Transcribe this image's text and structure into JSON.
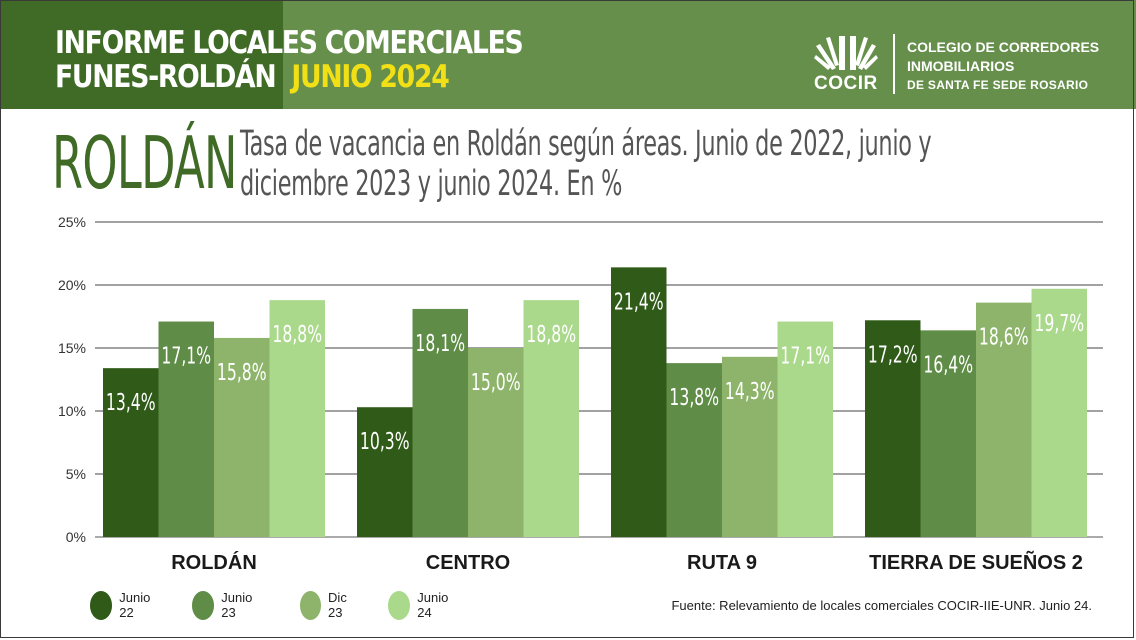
{
  "header": {
    "title_line1": "INFORME LOCALES COMERCIALES",
    "title_line2_prefix": "FUNES-ROLDÁN",
    "title_line2_highlight": "JUNIO 2024",
    "logo_text": "COCIR",
    "org_line1": "COLEGIO DE CORREDORES",
    "org_line2": "INMOBILIARIOS",
    "org_line3": "DE SANTA FE SEDE ROSARIO"
  },
  "page_title": "ROLDÁN",
  "source_note": "Fuente: Relevamiento de locales comerciales COCIR-IIE-UNR. Junio 24.",
  "colors": {
    "header_dark": "#3f6b26",
    "header_mid": "#668f4b",
    "highlight": "#f2e016",
    "series": [
      "#2f5a18",
      "#5f8c46",
      "#8db46a",
      "#abd98c"
    ]
  },
  "chart_data": {
    "type": "bar",
    "title": "Tasa de vacancia en Roldán según áreas. Junio de 2022, junio y diciembre 2023 y junio 2024. En %",
    "categories": [
      "ROLDÁN",
      "CENTRO",
      "RUTA 9",
      "TIERRA DE SUEÑOS 2"
    ],
    "series": [
      {
        "name": "Junio 22",
        "values": [
          13.4,
          10.3,
          21.4,
          17.2
        ],
        "labels": [
          "13,4%",
          "10,3%",
          "21,4%",
          "17,2%"
        ]
      },
      {
        "name": "Junio 23",
        "values": [
          17.1,
          18.1,
          13.8,
          16.4
        ],
        "labels": [
          "17,1%",
          "18,1%",
          "13,8%",
          "16,4%"
        ]
      },
      {
        "name": "Dic 23",
        "values": [
          15.8,
          15.0,
          14.3,
          18.6
        ],
        "labels": [
          "15,8%",
          "15,0%",
          "14,3%",
          "18,6%"
        ]
      },
      {
        "name": "Junio 24",
        "values": [
          18.8,
          18.8,
          17.1,
          19.7
        ],
        "labels": [
          "18,8%",
          "18,8%",
          "17,1%",
          "19,7%"
        ]
      }
    ],
    "yticks": [
      "0%",
      "5%",
      "10%",
      "15%",
      "20%",
      "25%"
    ],
    "ylim": [
      0,
      25
    ],
    "grid": true,
    "legend": "bottom-left"
  }
}
